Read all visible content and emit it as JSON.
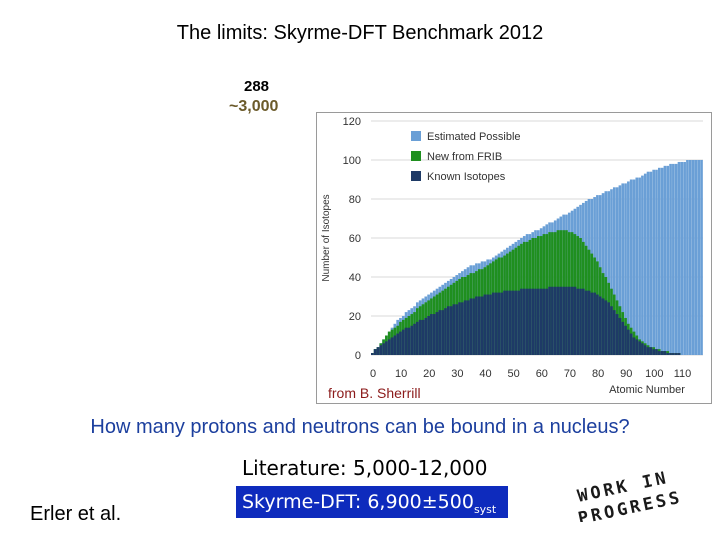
{
  "slide": {
    "title": "The limits: Skyrme-DFT Benchmark 2012",
    "count_288": "288",
    "count_3000": "~3,000",
    "credit": "from B. Sherrill",
    "question": "How many protons and neutrons can be bound in a nucleus?",
    "literature": "Literature: 5,000-12,000",
    "author": "Erler et al.",
    "skyrme_main": "Skyrme-DFT: 6,900±500",
    "skyrme_sub": "syst",
    "stamp_line1": "WORK IN",
    "stamp_line2": "PROGRESS"
  },
  "chart_data": {
    "type": "bar",
    "ylabel": "Number of Isotopes",
    "xlabel": "Atomic Number",
    "ylim": [
      0,
      120
    ],
    "xlim": [
      0,
      118
    ],
    "yticks": [
      "0",
      "20",
      "40",
      "60",
      "80",
      "100",
      "120"
    ],
    "xticks": [
      "0",
      "10",
      "20",
      "30",
      "40",
      "50",
      "60",
      "70",
      "80",
      "90",
      "100",
      "110"
    ],
    "legend_position": "top-left",
    "series": [
      {
        "name": "Estimated Possible",
        "color": "#6a9fd6",
        "values": [
          1,
          3,
          4,
          6,
          8,
          10,
          12,
          14,
          16,
          18,
          19,
          20,
          22,
          23,
          24,
          25,
          27,
          28,
          29,
          30,
          31,
          32,
          33,
          34,
          35,
          36,
          37,
          38,
          39,
          40,
          41,
          42,
          43,
          44,
          45,
          46,
          46,
          47,
          47,
          48,
          48,
          49,
          49,
          50,
          51,
          52,
          53,
          54,
          55,
          56,
          57,
          58,
          59,
          60,
          61,
          62,
          62,
          63,
          64,
          64,
          65,
          66,
          67,
          68,
          68,
          69,
          70,
          71,
          72,
          72,
          73,
          74,
          75,
          76,
          77,
          78,
          79,
          80,
          80,
          81,
          82,
          82,
          83,
          84,
          84,
          85,
          86,
          86,
          87,
          88,
          88,
          89,
          90,
          90,
          91,
          91,
          92,
          93,
          94,
          94,
          95,
          95,
          96,
          96,
          97,
          97,
          98,
          98,
          98,
          99,
          99,
          99,
          100,
          100,
          100,
          100,
          100,
          100
        ]
      },
      {
        "name": "New from FRIB",
        "color": "#1f8f1f",
        "values": [
          1,
          3,
          4,
          6,
          8,
          10,
          12,
          13,
          14,
          15,
          17,
          18,
          19,
          20,
          21,
          22,
          24,
          25,
          26,
          27,
          28,
          29,
          30,
          31,
          32,
          33,
          34,
          35,
          36,
          37,
          38,
          39,
          40,
          40,
          41,
          42,
          42,
          43,
          44,
          44,
          45,
          46,
          47,
          48,
          49,
          50,
          50,
          51,
          52,
          53,
          54,
          55,
          56,
          57,
          58,
          58,
          59,
          60,
          60,
          61,
          61,
          62,
          62,
          63,
          63,
          63,
          64,
          64,
          64,
          64,
          63,
          63,
          62,
          61,
          60,
          58,
          56,
          54,
          52,
          50,
          48,
          45,
          42,
          40,
          37,
          34,
          31,
          28,
          25,
          22,
          19,
          16,
          14,
          12,
          10,
          8,
          7,
          6,
          5,
          4,
          4,
          3,
          3,
          2,
          2,
          2,
          1,
          1,
          1,
          1,
          0,
          0,
          0,
          0,
          0,
          0,
          0,
          0
        ]
      },
      {
        "name": "Known Isotopes",
        "color": "#1e3a66",
        "values": [
          1,
          3,
          4,
          5,
          6,
          7,
          8,
          9,
          10,
          11,
          12,
          13,
          14,
          14,
          15,
          16,
          17,
          18,
          18,
          19,
          20,
          21,
          21,
          22,
          23,
          23,
          24,
          25,
          25,
          26,
          26,
          27,
          27,
          28,
          28,
          29,
          29,
          30,
          30,
          30,
          31,
          31,
          31,
          32,
          32,
          32,
          32,
          33,
          33,
          33,
          33,
          33,
          33,
          34,
          34,
          34,
          34,
          34,
          34,
          34,
          34,
          34,
          34,
          35,
          35,
          35,
          35,
          35,
          35,
          35,
          35,
          35,
          35,
          34,
          34,
          34,
          33,
          33,
          32,
          32,
          31,
          30,
          29,
          28,
          27,
          25,
          23,
          21,
          19,
          17,
          15,
          13,
          11,
          9,
          8,
          7,
          6,
          5,
          4,
          4,
          3,
          3,
          2,
          2,
          2,
          1,
          1,
          1,
          1,
          1,
          0,
          0,
          0,
          0,
          0,
          0,
          0,
          0
        ]
      }
    ]
  }
}
